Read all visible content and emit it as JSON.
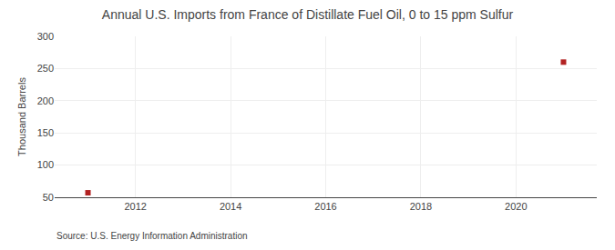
{
  "chart_data": {
    "type": "scatter",
    "title": "Annual U.S. Imports from France of Distillate Fuel Oil, 0 to 15 ppm Sulfur",
    "ylabel": "Thousand Barrels",
    "annotations": [
      "Source: U.S. Energy Information Administration"
    ],
    "x": [
      2011,
      2021
    ],
    "values": [
      57,
      260
    ],
    "color": "#b22222",
    "marker": "square",
    "xlim": [
      2010.3,
      2021.7
    ],
    "ylim": [
      50,
      300
    ],
    "xticks": [
      2012,
      2014,
      2016,
      2018,
      2020
    ],
    "yticks": [
      50,
      100,
      150,
      200,
      250,
      300
    ],
    "grid": true
  }
}
